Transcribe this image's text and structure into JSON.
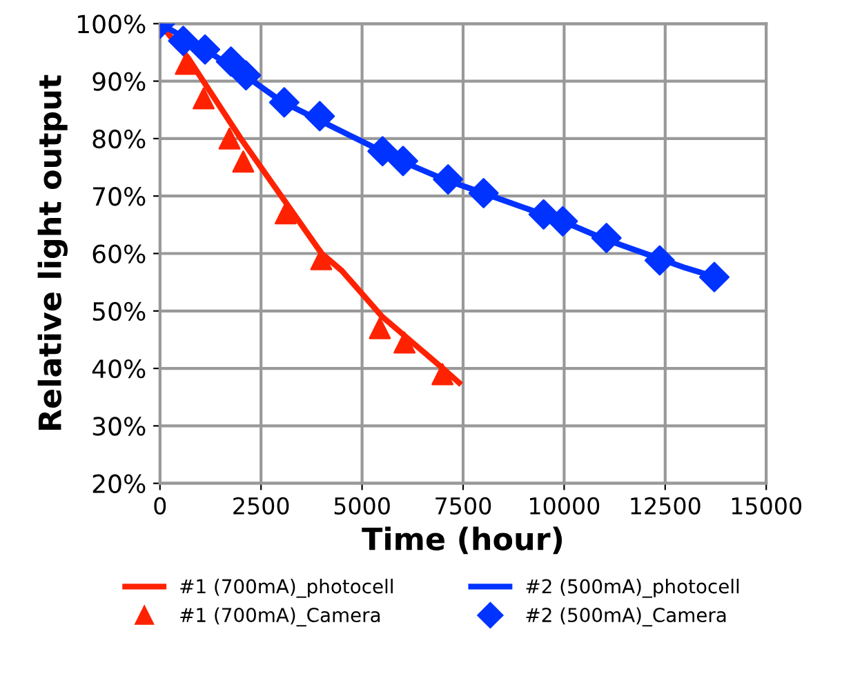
{
  "chart_data": {
    "type": "line",
    "xlabel": "Time (hour)",
    "ylabel": "Relative light output",
    "xlim": [
      0,
      15000
    ],
    "xticks": [
      0,
      2500,
      5000,
      7500,
      10000,
      12500,
      15000
    ],
    "ylim": [
      20,
      100
    ],
    "yticks": [
      {
        "value": 20,
        "label": "20%"
      },
      {
        "value": 30,
        "label": "30%"
      },
      {
        "value": 40,
        "label": "40%"
      },
      {
        "value": 50,
        "label": "50%"
      },
      {
        "value": 60,
        "label": "60%"
      },
      {
        "value": 70,
        "label": "70%"
      },
      {
        "value": 80,
        "label": "80%"
      },
      {
        "value": 90,
        "label": "90%"
      },
      {
        "value": 100,
        "label": "100%"
      }
    ],
    "grid": true,
    "legend": "bottom",
    "series": [
      {
        "name": "#1 (700mA)_photocell",
        "color": "#ff2200",
        "marker": "none",
        "x": [
          0,
          700,
          2000,
          3000,
          4000,
          4500,
          5000,
          5500,
          6000,
          6500,
          7000,
          7400
        ],
        "values": [
          100,
          94,
          80,
          70,
          60,
          57,
          53,
          49,
          46,
          43,
          40,
          37.5
        ]
      },
      {
        "name": "#2 (500mA)_photocell",
        "color": "#0033ff",
        "marker": "none",
        "x": [
          0,
          1000,
          2000,
          3000,
          4000,
          5000,
          6000,
          7000,
          8000,
          9000,
          10000,
          11000,
          12000,
          13000,
          13700
        ],
        "values": [
          100,
          96,
          91.5,
          86.5,
          83,
          79.5,
          76,
          73,
          70.5,
          68,
          65.5,
          62.5,
          60,
          57.5,
          56
        ]
      },
      {
        "name": "#1 (700mA)_Camera",
        "type": "scatter",
        "color": "#ff2200",
        "marker": "triangle",
        "x": [
          640,
          1080,
          1720,
          2060,
          3110,
          3990,
          5440,
          6050,
          6990
        ],
        "values": [
          93,
          87,
          80,
          76,
          67,
          59,
          47,
          44.5,
          39
        ]
      },
      {
        "name": "#2 (500mA)_Camera",
        "type": "scatter",
        "color": "#0033ff",
        "marker": "diamond",
        "x": [
          0,
          575,
          1115,
          1757,
          2128,
          3074,
          3953,
          5507,
          6014,
          7128,
          8007,
          9493,
          9966,
          11047,
          12365,
          13716
        ],
        "values": [
          100,
          97,
          95.5,
          93.4,
          91,
          86.3,
          83.9,
          77.8,
          76.1,
          72.9,
          70.5,
          66.8,
          65.6,
          62.7,
          58.8,
          55.9
        ]
      }
    ]
  }
}
